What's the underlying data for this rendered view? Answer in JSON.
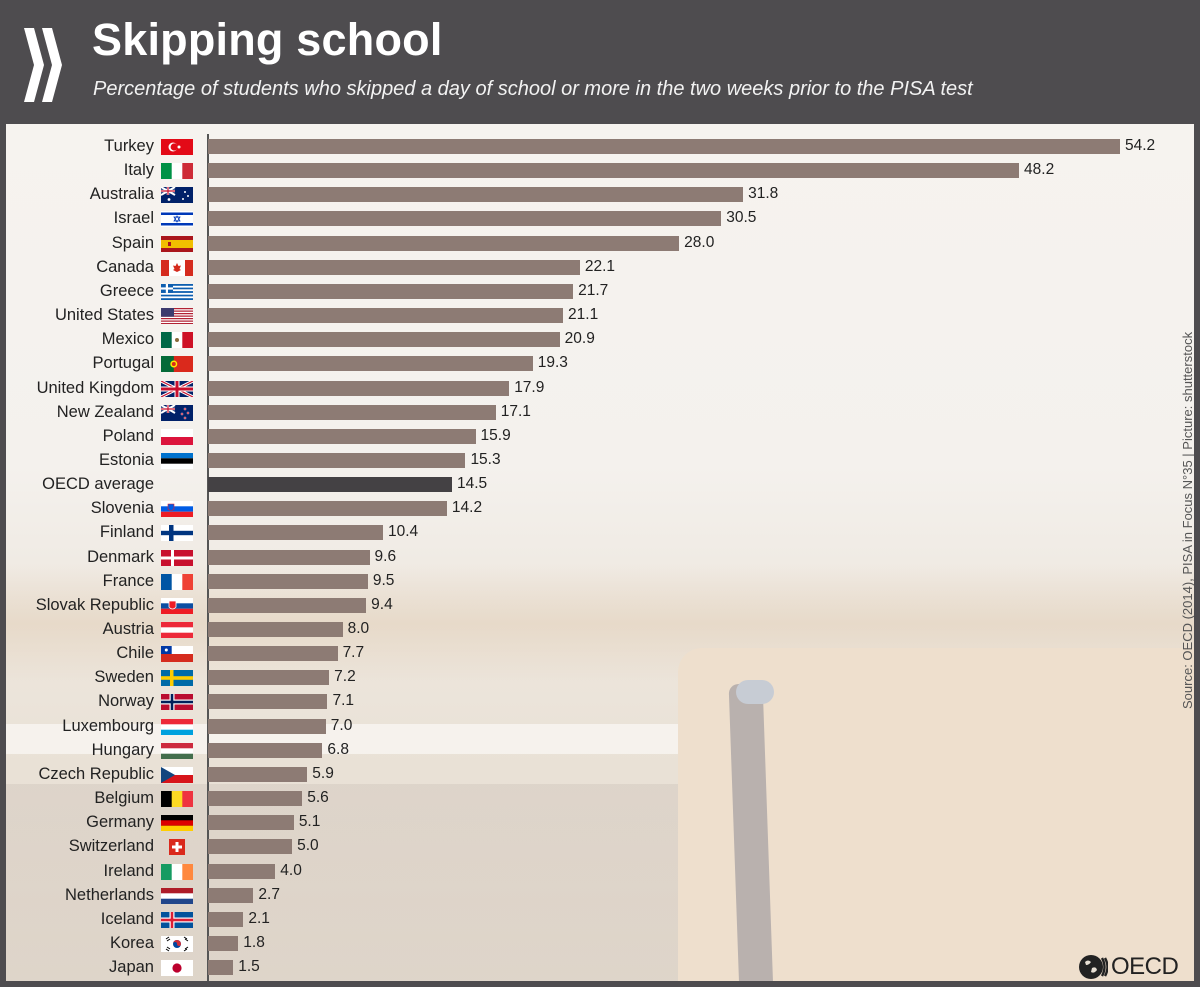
{
  "header": {
    "title": "Skipping school",
    "subtitle": "Percentage of students who skipped a day of school or more in the two weeks prior to the PISA test"
  },
  "source": "Source: OECD (2014), PISA in Focus N°35 | Picture: shutterstock",
  "logo": {
    "text": "OECD",
    "icon": "oecd-globe-icon"
  },
  "colors": {
    "header_bg": "#4e4c4f",
    "bar": "#8d7b74",
    "average_bar": "#444144"
  },
  "chart_data": {
    "type": "bar",
    "orientation": "horizontal",
    "title": "Skipping school",
    "subtitle": "Percentage of students who skipped a day of school or more in the two weeks prior to the PISA test",
    "xlabel": "",
    "ylabel": "",
    "xlim": [
      0,
      54.2
    ],
    "grid": false,
    "legend": null,
    "categories": [
      "Turkey",
      "Italy",
      "Australia",
      "Israel",
      "Spain",
      "Canada",
      "Greece",
      "United States",
      "Mexico",
      "Portugal",
      "United Kingdom",
      "New Zealand",
      "Poland",
      "Estonia",
      "OECD average",
      "Slovenia",
      "Finland",
      "Denmark",
      "France",
      "Slovak Republic",
      "Austria",
      "Chile",
      "Sweden",
      "Norway",
      "Luxembourg",
      "Hungary",
      "Czech Republic",
      "Belgium",
      "Germany",
      "Switzerland",
      "Ireland",
      "Netherlands",
      "Iceland",
      "Korea",
      "Japan"
    ],
    "values": [
      54.2,
      48.2,
      31.8,
      30.5,
      28.0,
      22.1,
      21.7,
      21.1,
      20.9,
      19.3,
      17.9,
      17.1,
      15.9,
      15.3,
      14.5,
      14.2,
      10.4,
      9.6,
      9.5,
      9.4,
      8.0,
      7.7,
      7.2,
      7.1,
      7.0,
      6.8,
      5.9,
      5.6,
      5.1,
      5.0,
      4.0,
      2.7,
      2.1,
      1.8,
      1.5
    ],
    "value_labels": [
      "54.2",
      "48.2",
      "31.8",
      "30.5",
      "28.0",
      "22.1",
      "21.7",
      "21.1",
      "20.9",
      "19.3",
      "17.9",
      "17.1",
      "15.9",
      "15.3",
      "14.5",
      "14.2",
      "10.4",
      "9.6",
      "9.5",
      "9.4",
      "8.0",
      "7.7",
      "7.2",
      "7.1",
      "7.0",
      "6.8",
      "5.9",
      "5.6",
      "5.1",
      "5.0",
      "4.0",
      "2.7",
      "2.1",
      "1.8",
      "1.5"
    ],
    "highlight": "OECD average",
    "flags": [
      "flag-turkey",
      "flag-italy",
      "flag-australia",
      "flag-israel",
      "flag-spain",
      "flag-canada",
      "flag-greece",
      "flag-united-states",
      "flag-mexico",
      "flag-portugal",
      "flag-united-kingdom",
      "flag-new-zealand",
      "flag-poland",
      "flag-estonia",
      "",
      "flag-slovenia",
      "flag-finland",
      "flag-denmark",
      "flag-france",
      "flag-slovak-republic",
      "flag-austria",
      "flag-chile",
      "flag-sweden",
      "flag-norway",
      "flag-luxembourg",
      "flag-hungary",
      "flag-czech-republic",
      "flag-belgium",
      "flag-germany",
      "flag-switzerland",
      "flag-ireland",
      "flag-netherlands",
      "flag-iceland",
      "flag-korea",
      "flag-japan"
    ]
  }
}
